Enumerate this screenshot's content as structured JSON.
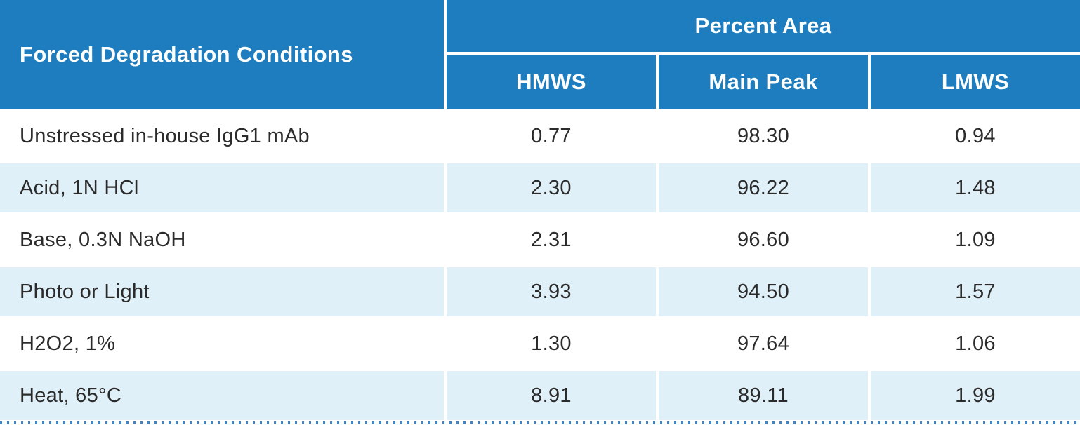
{
  "table": {
    "condition_header": "Forced Degradation Conditions",
    "group_header": "Percent Area",
    "sub_headers": [
      "HMWS",
      "Main Peak",
      "LMWS"
    ],
    "rows": [
      {
        "cells": [
          "Unstressed in-house IgG1 mAb",
          "0.77",
          "98.30",
          "0.94"
        ]
      },
      {
        "cells": [
          "Acid, 1N HCl",
          "2.30",
          "96.22",
          "1.48"
        ]
      },
      {
        "cells": [
          "Base, 0.3N NaOH",
          "2.31",
          "96.60",
          "1.09"
        ]
      },
      {
        "cells": [
          "Photo or Light",
          "3.93",
          "94.50",
          "1.57"
        ]
      },
      {
        "cells": [
          "H2O2, 1%",
          "1.30",
          "97.64",
          "1.06"
        ]
      },
      {
        "cells": [
          "Heat, 65°C",
          "8.91",
          "89.11",
          "1.99"
        ]
      }
    ]
  },
  "colors": {
    "header_blue": "#1E7DBE",
    "row_alt_blue": "#E0F0F8",
    "text_dark": "#2B2B2B",
    "dot_blue": "#3D85C4"
  }
}
